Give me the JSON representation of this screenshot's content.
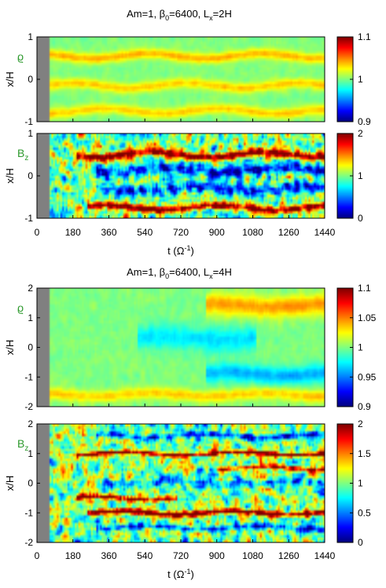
{
  "chart_data": [
    {
      "type": "heatmap",
      "title": {
        "main": "Am=1, β",
        "sub0": "0",
        "mid": "=6400, L",
        "sub1": "x",
        "end": "=2H"
      },
      "xlabel": {
        "main": "t (Ω",
        "sup": "-1",
        "end": ")"
      },
      "x_ticks": [
        "0",
        "180",
        "360",
        "540",
        "720",
        "900",
        "1080",
        "1260",
        "1440"
      ],
      "xlim": [
        0,
        1440
      ],
      "panels": [
        {
          "variable": {
            "main": "ϱ",
            "sub": ""
          },
          "ylabel": "x/H",
          "ylim": [
            -1,
            1
          ],
          "y_ticks": [
            "-1",
            "0",
            "1"
          ],
          "clim": [
            0.9,
            1.1
          ],
          "colorbar_ticks": [
            {
              "value": 0.9,
              "label": "0.9"
            },
            {
              "value": 1.0,
              "label": "1"
            },
            {
              "value": 1.1,
              "label": "1.1"
            }
          ],
          "bands": [
            {
              "t0": 0,
              "t1": 1440,
              "x": 0.55,
              "w": 0.12,
              "amp": 0.04
            },
            {
              "t0": 0,
              "t1": 1440,
              "x": -0.15,
              "w": 0.12,
              "amp": 0.035
            },
            {
              "t0": 0,
              "t1": 1440,
              "x": -0.75,
              "w": 0.12,
              "amp": 0.035
            }
          ],
          "noise": 0.055,
          "cells": [
            160,
            36
          ],
          "seed": 11
        },
        {
          "variable": {
            "main": "B",
            "sub": "z"
          },
          "ylabel": "x/H",
          "ylim": [
            -1,
            1
          ],
          "y_ticks": [
            "-1",
            "0",
            "1"
          ],
          "clim": [
            0,
            2
          ],
          "colorbar_ticks": [
            {
              "value": 0,
              "label": "0"
            },
            {
              "value": 1,
              "label": "1"
            },
            {
              "value": 2,
              "label": "2"
            }
          ],
          "bands": [
            {
              "t0": 200,
              "t1": 1440,
              "x": 0.5,
              "w": 0.09,
              "amp": 1.1
            },
            {
              "t0": 250,
              "t1": 1440,
              "x": -0.75,
              "w": 0.08,
              "amp": 1.1
            },
            {
              "t0": 300,
              "t1": 1440,
              "x": 0.15,
              "w": 0.13,
              "amp": -0.7
            },
            {
              "t0": 300,
              "t1": 1440,
              "x": -0.3,
              "w": 0.14,
              "amp": -0.6
            }
          ],
          "noise": 0.55,
          "cells": [
            160,
            36
          ],
          "seed": 23
        }
      ]
    },
    {
      "type": "heatmap",
      "title": {
        "main": "Am=1, β",
        "sub0": "0",
        "mid": "=6400, L",
        "sub1": "x",
        "end": "=4H"
      },
      "xlabel": {
        "main": "t (Ω",
        "sup": "-1",
        "end": ")"
      },
      "x_ticks": [
        "0",
        "180",
        "360",
        "540",
        "720",
        "900",
        "1080",
        "1260",
        "1440"
      ],
      "xlim": [
        0,
        1440
      ],
      "panels": [
        {
          "variable": {
            "main": "ϱ",
            "sub": ""
          },
          "ylabel": "x/H",
          "ylim": [
            -2,
            2
          ],
          "y_ticks": [
            "-2",
            "-1",
            "0",
            "1",
            "2"
          ],
          "clim": [
            0.9,
            1.1
          ],
          "colorbar_ticks": [
            {
              "value": 0.9,
              "label": "0.9"
            },
            {
              "value": 0.95,
              "label": "0.95"
            },
            {
              "value": 1.0,
              "label": "1"
            },
            {
              "value": 1.05,
              "label": "1.05"
            },
            {
              "value": 1.1,
              "label": "1.1"
            }
          ],
          "bands": [
            {
              "t0": 850,
              "t1": 1440,
              "x": 1.4,
              "w": 0.35,
              "amp": 0.045
            },
            {
              "t0": 850,
              "t1": 1440,
              "x": -0.9,
              "w": 0.3,
              "amp": -0.04
            },
            {
              "t0": 500,
              "t1": 1100,
              "x": 0.3,
              "w": 0.4,
              "amp": -0.03
            },
            {
              "t0": 0,
              "t1": 1440,
              "x": -1.6,
              "w": 0.2,
              "amp": 0.035
            }
          ],
          "noise": 0.06,
          "cells": [
            160,
            44
          ],
          "seed": 37
        },
        {
          "variable": {
            "main": "B",
            "sub": "z"
          },
          "ylabel": "x/H",
          "ylim": [
            -2,
            2
          ],
          "y_ticks": [
            "-2",
            "-1",
            "0",
            "1",
            "2"
          ],
          "clim": [
            0,
            2
          ],
          "colorbar_ticks": [
            {
              "value": 0,
              "label": "0"
            },
            {
              "value": 0.5,
              "label": "0.5"
            },
            {
              "value": 1,
              "label": "1"
            },
            {
              "value": 1.5,
              "label": "1.5"
            },
            {
              "value": 2,
              "label": "2"
            }
          ],
          "bands": [
            {
              "t0": 200,
              "t1": 1440,
              "x": 1.0,
              "w": 0.07,
              "amp": 1.1
            },
            {
              "t0": 250,
              "t1": 1440,
              "x": -1.0,
              "w": 0.09,
              "amp": 1.2
            },
            {
              "t0": 200,
              "t1": 700,
              "x": -0.5,
              "w": 0.08,
              "amp": 1.0
            },
            {
              "t0": 900,
              "t1": 1440,
              "x": 0.5,
              "w": 0.08,
              "amp": 0.9
            },
            {
              "t0": 300,
              "t1": 1440,
              "x": -1.5,
              "w": 0.1,
              "amp": -0.7
            },
            {
              "t0": 300,
              "t1": 1440,
              "x": 1.6,
              "w": 0.1,
              "amp": -0.7
            },
            {
              "t0": 300,
              "t1": 1440,
              "x": 0.0,
              "w": 0.14,
              "amp": -0.4
            }
          ],
          "noise": 0.55,
          "cells": [
            160,
            48
          ],
          "seed": 51
        }
      ]
    }
  ]
}
